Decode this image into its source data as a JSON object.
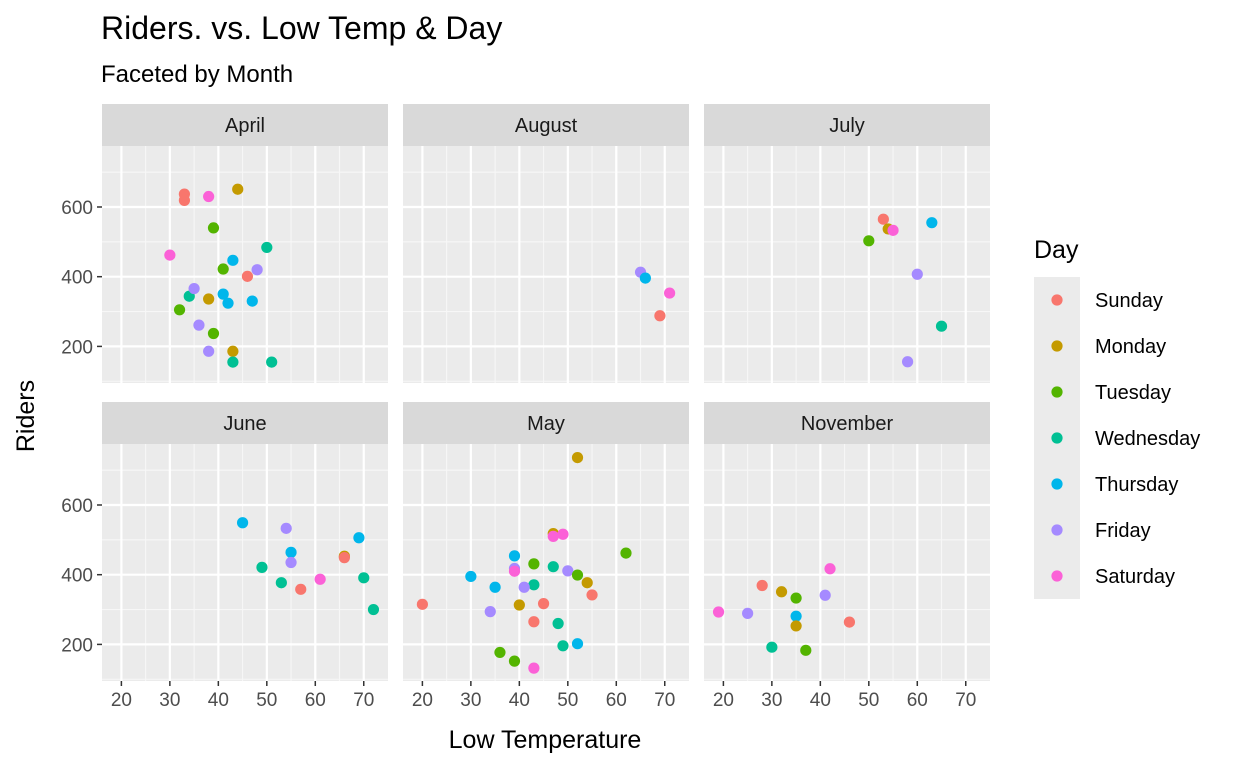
{
  "chart_data": {
    "type": "scatter",
    "title": "Riders. vs. Low Temp & Day",
    "subtitle": "Faceted by Month",
    "xlabel": "Low Temperature",
    "ylabel": "Riders",
    "xlim": [
      16,
      75
    ],
    "ylim": [
      95,
      775
    ],
    "x_ticks": [
      20,
      30,
      40,
      50,
      60,
      70
    ],
    "y_ticks": [
      200,
      400,
      600
    ],
    "grid": true,
    "legend_title": "Day",
    "legend_position": "right",
    "days": [
      "Sunday",
      "Monday",
      "Tuesday",
      "Wednesday",
      "Thursday",
      "Friday",
      "Saturday"
    ],
    "colors": [
      "#F8766D",
      "#C49A00",
      "#53B400",
      "#00C094",
      "#00B6EB",
      "#A58AFF",
      "#FB61D7"
    ],
    "facets": [
      {
        "label": "April",
        "points": [
          {
            "x": 33,
            "y": 637,
            "day": "Sunday"
          },
          {
            "x": 33,
            "y": 619,
            "day": "Sunday"
          },
          {
            "x": 46,
            "y": 401,
            "day": "Sunday"
          },
          {
            "x": 44,
            "y": 651,
            "day": "Monday"
          },
          {
            "x": 38,
            "y": 336,
            "day": "Monday"
          },
          {
            "x": 43,
            "y": 186,
            "day": "Monday"
          },
          {
            "x": 39,
            "y": 540,
            "day": "Tuesday"
          },
          {
            "x": 41,
            "y": 422,
            "day": "Tuesday"
          },
          {
            "x": 32,
            "y": 305,
            "day": "Tuesday"
          },
          {
            "x": 39,
            "y": 237,
            "day": "Tuesday"
          },
          {
            "x": 50,
            "y": 484,
            "day": "Wednesday"
          },
          {
            "x": 34,
            "y": 344,
            "day": "Wednesday"
          },
          {
            "x": 43,
            "y": 155,
            "day": "Wednesday"
          },
          {
            "x": 51,
            "y": 155,
            "day": "Wednesday"
          },
          {
            "x": 43,
            "y": 447,
            "day": "Thursday"
          },
          {
            "x": 41,
            "y": 350,
            "day": "Thursday"
          },
          {
            "x": 42,
            "y": 324,
            "day": "Thursday"
          },
          {
            "x": 47,
            "y": 330,
            "day": "Thursday"
          },
          {
            "x": 48,
            "y": 420,
            "day": "Friday"
          },
          {
            "x": 35,
            "y": 366,
            "day": "Friday"
          },
          {
            "x": 36,
            "y": 261,
            "day": "Friday"
          },
          {
            "x": 38,
            "y": 186,
            "day": "Friday"
          },
          {
            "x": 38,
            "y": 630,
            "day": "Saturday"
          },
          {
            "x": 30,
            "y": 462,
            "day": "Saturday"
          }
        ]
      },
      {
        "label": "August",
        "points": [
          {
            "x": 65,
            "y": 413,
            "day": "Friday"
          },
          {
            "x": 66,
            "y": 396,
            "day": "Thursday"
          },
          {
            "x": 71,
            "y": 353,
            "day": "Saturday"
          },
          {
            "x": 69,
            "y": 288,
            "day": "Sunday"
          }
        ]
      },
      {
        "label": "July",
        "points": [
          {
            "x": 53,
            "y": 565,
            "day": "Sunday"
          },
          {
            "x": 54,
            "y": 537,
            "day": "Monday"
          },
          {
            "x": 55,
            "y": 533,
            "day": "Saturday"
          },
          {
            "x": 50,
            "y": 503,
            "day": "Tuesday"
          },
          {
            "x": 63,
            "y": 555,
            "day": "Thursday"
          },
          {
            "x": 60,
            "y": 407,
            "day": "Friday"
          },
          {
            "x": 65,
            "y": 258,
            "day": "Wednesday"
          },
          {
            "x": 58,
            "y": 156,
            "day": "Friday"
          }
        ]
      },
      {
        "label": "June",
        "points": [
          {
            "x": 45,
            "y": 549,
            "day": "Thursday"
          },
          {
            "x": 54,
            "y": 533,
            "day": "Friday"
          },
          {
            "x": 69,
            "y": 506,
            "day": "Thursday"
          },
          {
            "x": 55,
            "y": 464,
            "day": "Thursday"
          },
          {
            "x": 55,
            "y": 435,
            "day": "Friday"
          },
          {
            "x": 49,
            "y": 421,
            "day": "Wednesday"
          },
          {
            "x": 66,
            "y": 453,
            "day": "Monday"
          },
          {
            "x": 66,
            "y": 449,
            "day": "Sunday"
          },
          {
            "x": 53,
            "y": 377,
            "day": "Wednesday"
          },
          {
            "x": 61,
            "y": 387,
            "day": "Saturday"
          },
          {
            "x": 57,
            "y": 358,
            "day": "Sunday"
          },
          {
            "x": 70,
            "y": 391,
            "day": "Wednesday"
          },
          {
            "x": 72,
            "y": 300,
            "day": "Wednesday"
          }
        ]
      },
      {
        "label": "May",
        "points": [
          {
            "x": 52,
            "y": 736,
            "day": "Monday"
          },
          {
            "x": 47,
            "y": 518,
            "day": "Monday"
          },
          {
            "x": 47,
            "y": 510,
            "day": "Saturday"
          },
          {
            "x": 49,
            "y": 516,
            "day": "Saturday"
          },
          {
            "x": 62,
            "y": 462,
            "day": "Tuesday"
          },
          {
            "x": 39,
            "y": 454,
            "day": "Thursday"
          },
          {
            "x": 43,
            "y": 431,
            "day": "Tuesday"
          },
          {
            "x": 47,
            "y": 423,
            "day": "Wednesday"
          },
          {
            "x": 39,
            "y": 418,
            "day": "Friday"
          },
          {
            "x": 39,
            "y": 410,
            "day": "Saturday"
          },
          {
            "x": 50,
            "y": 411,
            "day": "Friday"
          },
          {
            "x": 52,
            "y": 399,
            "day": "Tuesday"
          },
          {
            "x": 30,
            "y": 395,
            "day": "Thursday"
          },
          {
            "x": 54,
            "y": 377,
            "day": "Monday"
          },
          {
            "x": 43,
            "y": 371,
            "day": "Wednesday"
          },
          {
            "x": 35,
            "y": 364,
            "day": "Thursday"
          },
          {
            "x": 41,
            "y": 364,
            "day": "Friday"
          },
          {
            "x": 55,
            "y": 342,
            "day": "Sunday"
          },
          {
            "x": 20,
            "y": 315,
            "day": "Sunday"
          },
          {
            "x": 40,
            "y": 313,
            "day": "Monday"
          },
          {
            "x": 45,
            "y": 317,
            "day": "Sunday"
          },
          {
            "x": 34,
            "y": 294,
            "day": "Friday"
          },
          {
            "x": 43,
            "y": 265,
            "day": "Sunday"
          },
          {
            "x": 48,
            "y": 260,
            "day": "Wednesday"
          },
          {
            "x": 49,
            "y": 196,
            "day": "Wednesday"
          },
          {
            "x": 52,
            "y": 202,
            "day": "Thursday"
          },
          {
            "x": 36,
            "y": 177,
            "day": "Tuesday"
          },
          {
            "x": 39,
            "y": 152,
            "day": "Tuesday"
          },
          {
            "x": 43,
            "y": 132,
            "day": "Saturday"
          }
        ]
      },
      {
        "label": "November",
        "points": [
          {
            "x": 42,
            "y": 417,
            "day": "Saturday"
          },
          {
            "x": 28,
            "y": 369,
            "day": "Sunday"
          },
          {
            "x": 32,
            "y": 351,
            "day": "Monday"
          },
          {
            "x": 41,
            "y": 341,
            "day": "Friday"
          },
          {
            "x": 35,
            "y": 333,
            "day": "Tuesday"
          },
          {
            "x": 19,
            "y": 293,
            "day": "Saturday"
          },
          {
            "x": 25,
            "y": 289,
            "day": "Friday"
          },
          {
            "x": 35,
            "y": 281,
            "day": "Thursday"
          },
          {
            "x": 35,
            "y": 253,
            "day": "Monday"
          },
          {
            "x": 46,
            "y": 264,
            "day": "Sunday"
          },
          {
            "x": 30,
            "y": 192,
            "day": "Wednesday"
          },
          {
            "x": 37,
            "y": 183,
            "day": "Tuesday"
          }
        ]
      }
    ]
  }
}
